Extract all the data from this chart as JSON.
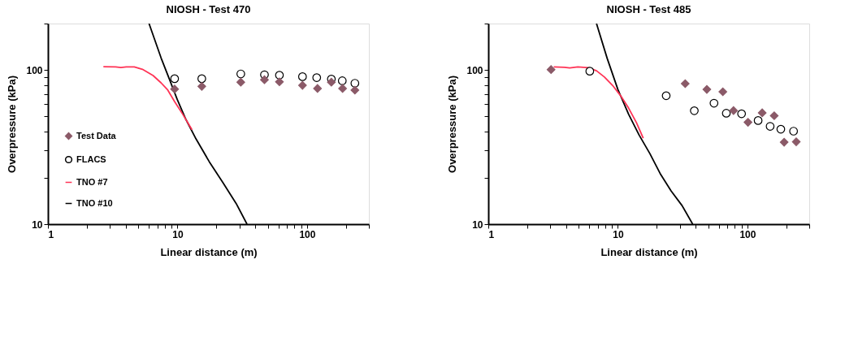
{
  "chart_data": [
    {
      "type": "scatter",
      "title": "NIOSH - Test 470",
      "xlabel": "Linear distance (m)",
      "ylabel": "Overpressure (kPa)",
      "log": "xy",
      "grid": false,
      "legend": "bottom left",
      "xlim": [
        1,
        300
      ],
      "ylim": [
        10,
        200
      ],
      "xticks": [
        1,
        {
          "value": 2,
          "label": null
        },
        {
          "value": 3,
          "label": null
        },
        {
          "value": 4,
          "label": null
        },
        {
          "value": 5,
          "label": null
        },
        {
          "value": 6,
          "label": null
        },
        {
          "value": 7,
          "label": null
        },
        {
          "value": 8,
          "label": null
        },
        {
          "value": 9,
          "label": null
        },
        10,
        {
          "value": 20,
          "label": null
        },
        {
          "value": 30,
          "label": null
        },
        {
          "value": 40,
          "label": null
        },
        {
          "value": 50,
          "label": null
        },
        {
          "value": 60,
          "label": null
        },
        {
          "value": 70,
          "label": null
        },
        {
          "value": 80,
          "label": null
        },
        {
          "value": 90,
          "label": null
        },
        100,
        {
          "value": 200,
          "label": null
        },
        {
          "value": 300,
          "label": null
        }
      ],
      "yticks": [
        10,
        {
          "value": 20,
          "label": null
        },
        {
          "value": 30,
          "label": null
        },
        {
          "value": 40,
          "label": null
        },
        {
          "value": 50,
          "label": null
        },
        {
          "value": 60,
          "label": null
        },
        {
          "value": 70,
          "label": null
        },
        {
          "value": 80,
          "label": null
        },
        {
          "value": 90,
          "label": null
        },
        100,
        {
          "value": 200,
          "label": null
        }
      ],
      "series": [
        {
          "name": "Test Data",
          "marker": "diamond",
          "color": "#8b5a68",
          "x": [
            9.5,
            15.4,
            30.8,
            46.9,
            61.2,
            92.2,
            120.4,
            154,
            188,
            234
          ],
          "values": [
            75.2,
            78.3,
            83.3,
            86.4,
            83.8,
            79.5,
            75.9,
            83.3,
            75.9,
            74.0
          ]
        },
        {
          "name": "FLACS",
          "marker": "circle",
          "color": "#000000",
          "x": [
            9.5,
            15.4,
            30.8,
            46.9,
            61.2,
            92.2,
            118.7,
            154,
            187,
            234
          ],
          "values": [
            87.8,
            87.8,
            94.3,
            93.1,
            92.5,
            90.5,
            89.2,
            87.3,
            85.1,
            82.0
          ]
        },
        {
          "name": "TNO #7",
          "type": "line",
          "marker": "none",
          "color": "#ff3355",
          "x": [
            2.68,
            3.33,
            3.66,
            4.02,
            4.64,
            5.36,
            6.48,
            7.47,
            8.42,
            9.49,
            10.95,
            12.94
          ],
          "values": [
            105.1,
            104.8,
            103.8,
            104.8,
            104.8,
            101.0,
            92.0,
            82.5,
            74.0,
            62.4,
            51.8,
            41.0
          ]
        },
        {
          "name": "TNO #10",
          "type": "line",
          "marker": "none",
          "color": "#000000",
          "x": [
            6.03,
            7.47,
            8.63,
            9.95,
            11.48,
            13.9,
            17.6,
            22.4,
            28.4,
            34.4
          ],
          "values": [
            200,
            119.7,
            87.8,
            64.4,
            48.7,
            35.7,
            25.4,
            18.6,
            13.6,
            10
          ]
        }
      ]
    },
    {
      "type": "scatter",
      "title": "NIOSH - Test 485",
      "xlabel": "Linear distance (m)",
      "ylabel": "Overpressure (kPa)",
      "log": "xy",
      "grid": false,
      "legend": "bottom left",
      "xlim": [
        1,
        300
      ],
      "ylim": [
        10,
        200
      ],
      "xticks": [
        1,
        {
          "value": 2,
          "label": null
        },
        {
          "value": 3,
          "label": null
        },
        {
          "value": 4,
          "label": null
        },
        {
          "value": 5,
          "label": null
        },
        {
          "value": 6,
          "label": null
        },
        {
          "value": 7,
          "label": null
        },
        {
          "value": 8,
          "label": null
        },
        {
          "value": 9,
          "label": null
        },
        10,
        {
          "value": 20,
          "label": null
        },
        {
          "value": 30,
          "label": null
        },
        {
          "value": 40,
          "label": null
        },
        {
          "value": 50,
          "label": null
        },
        {
          "value": 60,
          "label": null
        },
        {
          "value": 70,
          "label": null
        },
        {
          "value": 80,
          "label": null
        },
        {
          "value": 90,
          "label": null
        },
        100,
        {
          "value": 200,
          "label": null
        },
        {
          "value": 300,
          "label": null
        }
      ],
      "yticks": [
        10,
        {
          "value": 20,
          "label": null
        },
        {
          "value": 30,
          "label": null
        },
        {
          "value": 40,
          "label": null
        },
        {
          "value": 50,
          "label": null
        },
        {
          "value": 60,
          "label": null
        },
        {
          "value": 70,
          "label": null
        },
        {
          "value": 80,
          "label": null
        },
        {
          "value": 90,
          "label": null
        },
        100,
        {
          "value": 200,
          "label": null
        }
      ],
      "series": [
        {
          "name": "Test Data",
          "marker": "diamond",
          "color": "#8b5a68",
          "x": [
            3.05,
            33.1,
            48.6,
            64.6,
            78.1,
            101,
            130,
            161,
            192,
            238
          ],
          "values": [
            100.6,
            81.5,
            74.8,
            72.2,
            54.5,
            45.8,
            52.7,
            50.5,
            34.0,
            34.2
          ]
        },
        {
          "name": "FLACS",
          "marker": "circle",
          "color": "#000000",
          "x": [
            6.07,
            23.6,
            38.9,
            55.2,
            68.7,
            90.1,
            120.9,
            149.7,
            181,
            227
          ],
          "values": [
            98.2,
            68.1,
            54.4,
            60.9,
            52.4,
            52.0,
            47.0,
            43.1,
            41.3,
            40.1
          ]
        },
        {
          "name": "TNO #7",
          "type": "line",
          "marker": "none",
          "color": "#ff3355",
          "x": [
            3.2,
            3.87,
            4.25,
            4.91,
            5.93,
            6.84,
            7.88,
            9.09,
            10.5,
            12.1,
            13.9,
            15.7
          ],
          "values": [
            104.7,
            104.1,
            103.1,
            104.7,
            103.5,
            98.8,
            90.0,
            79.5,
            68.1,
            56.6,
            45.6,
            36.1
          ]
        },
        {
          "name": "TNO #10",
          "type": "line",
          "marker": "none",
          "color": "#000000",
          "x": [
            6.84,
            8.27,
            10,
            12.1,
            14.6,
            17.7,
            21.4,
            25.8,
            31.3,
            37.8
          ],
          "values": [
            200,
            118.9,
            74.8,
            51.6,
            37.8,
            28.6,
            21.0,
            16.4,
            13.2,
            10
          ]
        }
      ]
    }
  ]
}
